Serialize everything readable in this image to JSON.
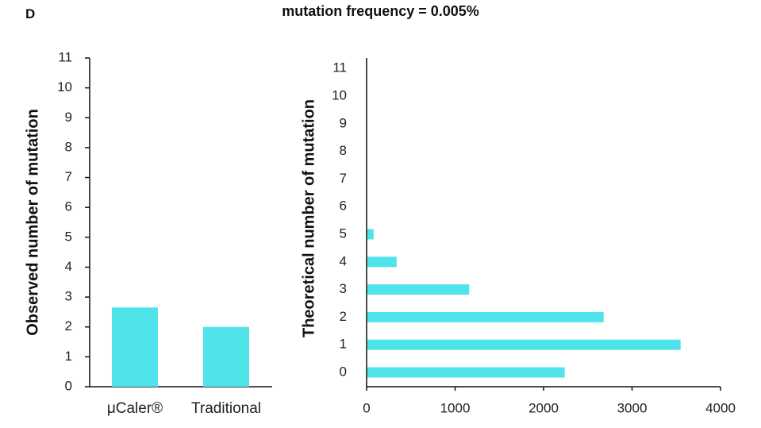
{
  "panel_label": "D",
  "title": "mutation frequency = 0.005%",
  "chart_data": [
    {
      "type": "bar",
      "orientation": "vertical",
      "categories": [
        "μCaler®",
        "Traditional"
      ],
      "values": [
        2.65,
        2.0
      ],
      "ylabel": "Observed number of mutation",
      "xlabel": "",
      "ylim": [
        0,
        11
      ],
      "yticks": [
        "0",
        "1",
        "2",
        "3",
        "4",
        "5",
        "6",
        "7",
        "8",
        "9",
        "10",
        "11"
      ],
      "color": "#4fe3ea",
      "grid": false
    },
    {
      "type": "bar",
      "orientation": "horizontal",
      "categories": [
        "0",
        "1",
        "2",
        "3",
        "4",
        "5",
        "6",
        "7",
        "8",
        "9",
        "10",
        "11"
      ],
      "values": [
        2230,
        3540,
        2670,
        1150,
        330,
        70,
        0,
        0,
        0,
        0,
        0,
        0
      ],
      "ylabel": "Theoretical number of mutation",
      "xlabel": "",
      "xlim": [
        0,
        4000
      ],
      "xticks": [
        "0",
        "1000",
        "2000",
        "3000",
        "4000"
      ],
      "color": "#4fe3ea",
      "grid": false
    }
  ]
}
